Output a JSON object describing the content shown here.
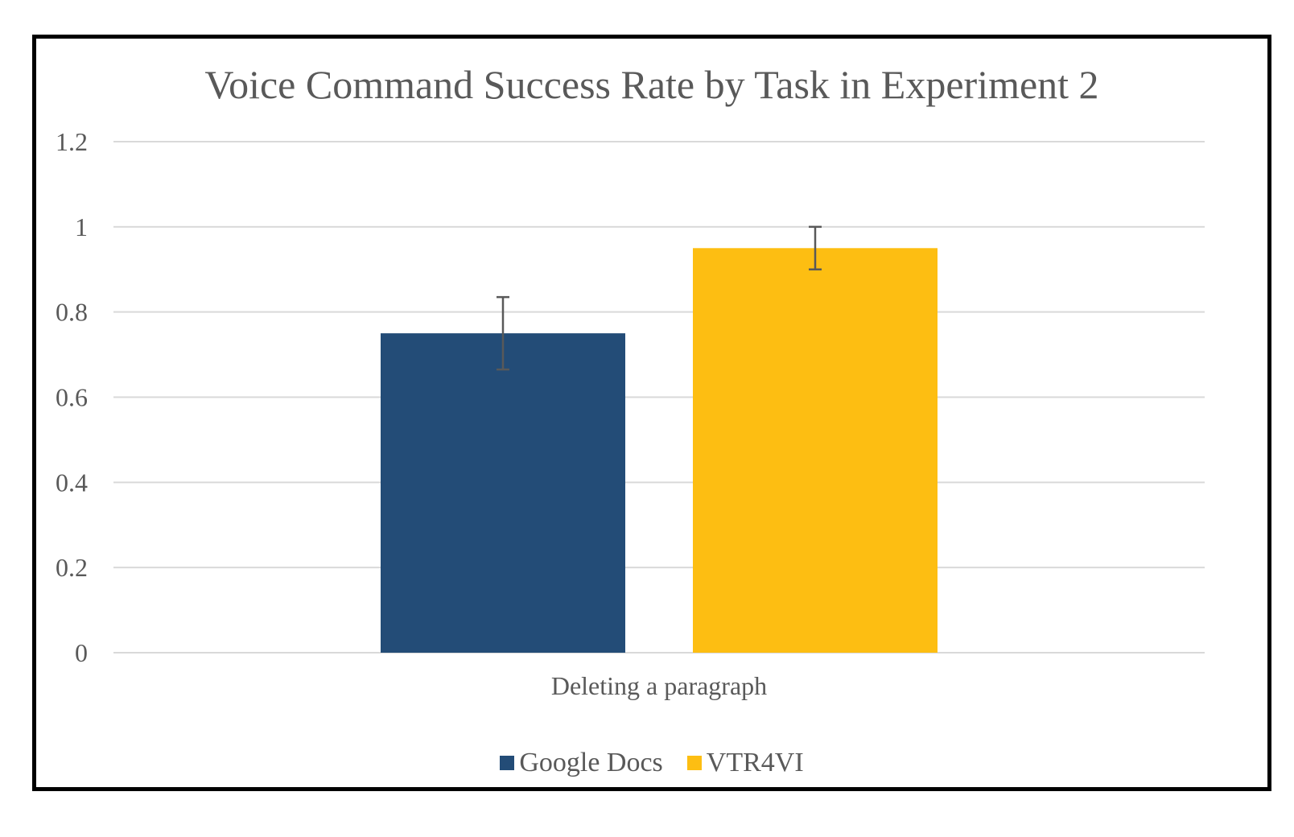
{
  "chart_data": {
    "type": "bar",
    "title": "Voice Command Success Rate by Task in Experiment 2",
    "categories": [
      "Deleting a paragraph"
    ],
    "series": [
      {
        "name": "Google Docs",
        "values": [
          0.75
        ],
        "error": [
          0.085
        ],
        "color": "#234c77"
      },
      {
        "name": "VTR4VI",
        "values": [
          0.95
        ],
        "error": [
          0.05
        ],
        "color": "#fdbe12"
      }
    ],
    "xlabel": "",
    "ylabel": "",
    "ylim": [
      0,
      1.2
    ],
    "yticks": [
      "0",
      "0.2",
      "0.4",
      "0.6",
      "0.8",
      "1",
      "1.2"
    ],
    "grid": true,
    "legend_position": "bottom"
  }
}
